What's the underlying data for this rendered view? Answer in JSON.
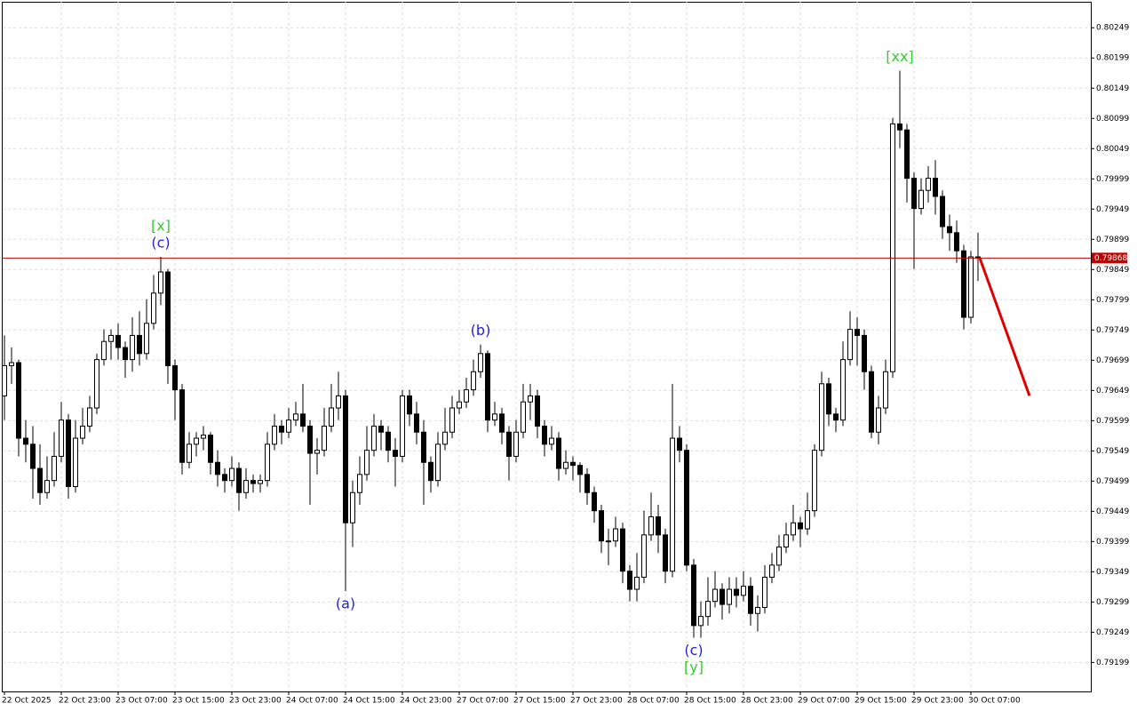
{
  "chart_data": {
    "type": "candlestick",
    "ylim": [
      0.79151,
      0.80292
    ],
    "yticks": [
      0.80249,
      0.80199,
      0.80149,
      0.80099,
      0.80049,
      0.79999,
      0.79949,
      0.79899,
      0.79849,
      0.79799,
      0.79749,
      0.79699,
      0.79649,
      0.79599,
      0.79549,
      0.79499,
      0.79449,
      0.79399,
      0.79349,
      0.79299,
      0.79249,
      0.79199
    ],
    "xtick_labels": [
      "22 Oct 2025",
      "22 Oct 23:00",
      "23 Oct 07:00",
      "23 Oct 15:00",
      "23 Oct 23:00",
      "24 Oct 07:00",
      "24 Oct 15:00",
      "24 Oct 23:00",
      "27 Oct 07:00",
      "27 Oct 15:00",
      "27 Oct 23:00",
      "28 Oct 07:00",
      "28 Oct 15:00",
      "28 Oct 23:00",
      "29 Oct 07:00",
      "29 Oct 15:00",
      "29 Oct 23:00",
      "30 Oct 07:00"
    ],
    "grid": true,
    "current_price": 0.79868,
    "current_price_color": "#c00000",
    "up_color": "#ffffff",
    "down_color": "#000000",
    "annotations": [
      {
        "text": "[x]",
        "color": "#33cc33"
      },
      {
        "text": "(c)",
        "color": "#2222dd"
      },
      {
        "text": "(a)",
        "color": "#2222dd"
      },
      {
        "text": "(b)",
        "color": "#2222dd"
      },
      {
        "text": "(c)",
        "color": "#2222dd"
      },
      {
        "text": "[y]",
        "color": "#33cc33"
      },
      {
        "text": "[xx]",
        "color": "#33cc33"
      }
    ],
    "forecast_color": "#e00000",
    "ohlc": [
      [
        0.7964,
        0.7974,
        0.796,
        0.7969
      ],
      [
        0.7969,
        0.7972,
        0.7966,
        0.79695
      ],
      [
        0.79695,
        0.797,
        0.7954,
        0.7957
      ],
      [
        0.7957,
        0.796,
        0.7953,
        0.7956
      ],
      [
        0.7956,
        0.7959,
        0.7947,
        0.7952
      ],
      [
        0.7952,
        0.7956,
        0.7946,
        0.7948
      ],
      [
        0.7948,
        0.7954,
        0.7947,
        0.795
      ],
      [
        0.795,
        0.7958,
        0.7949,
        0.7954
      ],
      [
        0.7954,
        0.7963,
        0.7953,
        0.796
      ],
      [
        0.796,
        0.7961,
        0.7947,
        0.7949
      ],
      [
        0.7949,
        0.796,
        0.7948,
        0.7957
      ],
      [
        0.7957,
        0.7962,
        0.7956,
        0.7959
      ],
      [
        0.7959,
        0.7964,
        0.7958,
        0.7962
      ],
      [
        0.7962,
        0.7971,
        0.7961,
        0.797
      ],
      [
        0.797,
        0.7975,
        0.7969,
        0.7973
      ],
      [
        0.7973,
        0.7975,
        0.797,
        0.7974
      ],
      [
        0.7974,
        0.7976,
        0.797,
        0.7972
      ],
      [
        0.7972,
        0.7973,
        0.7967,
        0.797
      ],
      [
        0.797,
        0.7977,
        0.7968,
        0.7974
      ],
      [
        0.7974,
        0.7978,
        0.7969,
        0.7971
      ],
      [
        0.7971,
        0.798,
        0.797,
        0.7976
      ],
      [
        0.7976,
        0.7984,
        0.7975,
        0.7981
      ],
      [
        0.7981,
        0.7987,
        0.7979,
        0.79845
      ],
      [
        0.79845,
        0.7985,
        0.7966,
        0.7969
      ],
      [
        0.7969,
        0.797,
        0.796,
        0.7965
      ],
      [
        0.7965,
        0.7966,
        0.7951,
        0.7953
      ],
      [
        0.7953,
        0.7958,
        0.7952,
        0.7956
      ],
      [
        0.7956,
        0.7958,
        0.7954,
        0.7957
      ],
      [
        0.7957,
        0.7959,
        0.7955,
        0.79575
      ],
      [
        0.79575,
        0.7958,
        0.7951,
        0.7953
      ],
      [
        0.7953,
        0.7955,
        0.7949,
        0.7951
      ],
      [
        0.7951,
        0.7952,
        0.7948,
        0.795
      ],
      [
        0.795,
        0.7954,
        0.7949,
        0.7952
      ],
      [
        0.7952,
        0.7953,
        0.7945,
        0.7948
      ],
      [
        0.7948,
        0.7952,
        0.7947,
        0.795
      ],
      [
        0.795,
        0.7951,
        0.7948,
        0.79495
      ],
      [
        0.79495,
        0.7951,
        0.7948,
        0.795
      ],
      [
        0.795,
        0.7958,
        0.7949,
        0.7956
      ],
      [
        0.7956,
        0.7961,
        0.7955,
        0.7959
      ],
      [
        0.7959,
        0.796,
        0.7956,
        0.7958
      ],
      [
        0.7958,
        0.7962,
        0.7957,
        0.796
      ],
      [
        0.796,
        0.7963,
        0.7959,
        0.7961
      ],
      [
        0.7961,
        0.7966,
        0.7958,
        0.7959
      ],
      [
        0.7959,
        0.796,
        0.7946,
        0.79545
      ],
      [
        0.79545,
        0.7957,
        0.7951,
        0.7955
      ],
      [
        0.7955,
        0.7962,
        0.7954,
        0.7959
      ],
      [
        0.7959,
        0.7966,
        0.7958,
        0.7962
      ],
      [
        0.7962,
        0.7968,
        0.796,
        0.7964
      ],
      [
        0.7964,
        0.7965,
        0.79317,
        0.7943
      ],
      [
        0.7943,
        0.795,
        0.7939,
        0.7948
      ],
      [
        0.7948,
        0.7954,
        0.7946,
        0.7951
      ],
      [
        0.7951,
        0.7959,
        0.795,
        0.7955
      ],
      [
        0.7955,
        0.7961,
        0.7954,
        0.7959
      ],
      [
        0.7959,
        0.796,
        0.7955,
        0.7958
      ],
      [
        0.7958,
        0.7959,
        0.7953,
        0.7955
      ],
      [
        0.7955,
        0.7957,
        0.7949,
        0.7954
      ],
      [
        0.7954,
        0.7965,
        0.7953,
        0.7964
      ],
      [
        0.7964,
        0.7965,
        0.7959,
        0.7961
      ],
      [
        0.7961,
        0.7963,
        0.7956,
        0.7958
      ],
      [
        0.7958,
        0.796,
        0.7946,
        0.7953
      ],
      [
        0.7953,
        0.7954,
        0.7948,
        0.795
      ],
      [
        0.795,
        0.7958,
        0.7949,
        0.7956
      ],
      [
        0.7956,
        0.7962,
        0.7955,
        0.7958
      ],
      [
        0.7958,
        0.7964,
        0.7957,
        0.7962
      ],
      [
        0.7962,
        0.7965,
        0.7961,
        0.7963
      ],
      [
        0.7963,
        0.7967,
        0.7962,
        0.7965
      ],
      [
        0.7965,
        0.797,
        0.7964,
        0.7968
      ],
      [
        0.7968,
        0.79725,
        0.7967,
        0.7971
      ],
      [
        0.7971,
        0.79715,
        0.7958,
        0.796
      ],
      [
        0.796,
        0.7963,
        0.7959,
        0.7961
      ],
      [
        0.7961,
        0.7962,
        0.7956,
        0.7958
      ],
      [
        0.7958,
        0.7959,
        0.795,
        0.7954
      ],
      [
        0.7954,
        0.796,
        0.7953,
        0.7958
      ],
      [
        0.7958,
        0.7966,
        0.7957,
        0.7963
      ],
      [
        0.7963,
        0.7966,
        0.796,
        0.7964
      ],
      [
        0.7964,
        0.7965,
        0.7957,
        0.7959
      ],
      [
        0.7959,
        0.796,
        0.7954,
        0.7956
      ],
      [
        0.7956,
        0.7959,
        0.7955,
        0.7957
      ],
      [
        0.7957,
        0.7958,
        0.795,
        0.7952
      ],
      [
        0.7952,
        0.7955,
        0.7951,
        0.7953
      ],
      [
        0.7953,
        0.7954,
        0.795,
        0.79525
      ],
      [
        0.79525,
        0.7953,
        0.7948,
        0.7951
      ],
      [
        0.7951,
        0.7952,
        0.7946,
        0.7948
      ],
      [
        0.7948,
        0.7949,
        0.7943,
        0.7945
      ],
      [
        0.7945,
        0.7946,
        0.7938,
        0.794
      ],
      [
        0.794,
        0.7942,
        0.7936,
        0.794
      ],
      [
        0.794,
        0.7944,
        0.7939,
        0.7942
      ],
      [
        0.7942,
        0.7943,
        0.7933,
        0.7935
      ],
      [
        0.7935,
        0.7936,
        0.793,
        0.7932
      ],
      [
        0.7932,
        0.7938,
        0.793,
        0.7934
      ],
      [
        0.7934,
        0.7945,
        0.7933,
        0.7941
      ],
      [
        0.7941,
        0.7948,
        0.794,
        0.7944
      ],
      [
        0.7944,
        0.7946,
        0.7938,
        0.7941
      ],
      [
        0.7941,
        0.7942,
        0.7933,
        0.7935
      ],
      [
        0.7935,
        0.7966,
        0.7934,
        0.7957
      ],
      [
        0.7957,
        0.7959,
        0.7953,
        0.7955
      ],
      [
        0.7955,
        0.7956,
        0.7935,
        0.7936
      ],
      [
        0.7936,
        0.7937,
        0.7924,
        0.7926
      ],
      [
        0.7926,
        0.793,
        0.7924,
        0.79275
      ],
      [
        0.79275,
        0.7934,
        0.7926,
        0.793
      ],
      [
        0.793,
        0.7935,
        0.7929,
        0.7932
      ],
      [
        0.7932,
        0.7933,
        0.7927,
        0.79295
      ],
      [
        0.79295,
        0.7934,
        0.7928,
        0.7932
      ],
      [
        0.7932,
        0.7934,
        0.7929,
        0.7931
      ],
      [
        0.7931,
        0.7935,
        0.793,
        0.79325
      ],
      [
        0.79325,
        0.7934,
        0.7926,
        0.7928
      ],
      [
        0.7928,
        0.7931,
        0.7925,
        0.7929
      ],
      [
        0.7929,
        0.7936,
        0.7928,
        0.7934
      ],
      [
        0.7934,
        0.7938,
        0.7933,
        0.7936
      ],
      [
        0.7936,
        0.7941,
        0.7935,
        0.7939
      ],
      [
        0.7939,
        0.7943,
        0.7938,
        0.7941
      ],
      [
        0.7941,
        0.7946,
        0.794,
        0.7943
      ],
      [
        0.7943,
        0.7944,
        0.7939,
        0.7942
      ],
      [
        0.7942,
        0.7948,
        0.7941,
        0.7945
      ],
      [
        0.7945,
        0.7956,
        0.7944,
        0.7955
      ],
      [
        0.7955,
        0.7968,
        0.7954,
        0.7966
      ],
      [
        0.7966,
        0.7967,
        0.7959,
        0.7961
      ],
      [
        0.7961,
        0.7962,
        0.7958,
        0.796
      ],
      [
        0.796,
        0.7973,
        0.7959,
        0.797
      ],
      [
        0.797,
        0.7978,
        0.7969,
        0.7975
      ],
      [
        0.7975,
        0.7977,
        0.7969,
        0.7974
      ],
      [
        0.7974,
        0.7975,
        0.7965,
        0.7968
      ],
      [
        0.7968,
        0.7969,
        0.7957,
        0.7958
      ],
      [
        0.7958,
        0.7964,
        0.7956,
        0.7962
      ],
      [
        0.7962,
        0.797,
        0.7961,
        0.7968
      ],
      [
        0.7968,
        0.801,
        0.7967,
        0.8009
      ],
      [
        0.8009,
        0.80178,
        0.8005,
        0.8008
      ],
      [
        0.8008,
        0.8009,
        0.7996,
        0.8
      ],
      [
        0.8,
        0.8001,
        0.7985,
        0.7995
      ],
      [
        0.7995,
        0.8,
        0.7994,
        0.7998
      ],
      [
        0.7998,
        0.8002,
        0.7996,
        0.8
      ],
      [
        0.8,
        0.8003,
        0.7994,
        0.7997
      ],
      [
        0.7997,
        0.7998,
        0.799,
        0.7992
      ],
      [
        0.7992,
        0.7994,
        0.7988,
        0.7991
      ],
      [
        0.7991,
        0.7993,
        0.7986,
        0.7988
      ],
      [
        0.7988,
        0.7989,
        0.7975,
        0.7977
      ],
      [
        0.7977,
        0.7988,
        0.7976,
        0.7987
      ],
      [
        0.7987,
        0.7991,
        0.7983,
        0.79868
      ]
    ]
  }
}
